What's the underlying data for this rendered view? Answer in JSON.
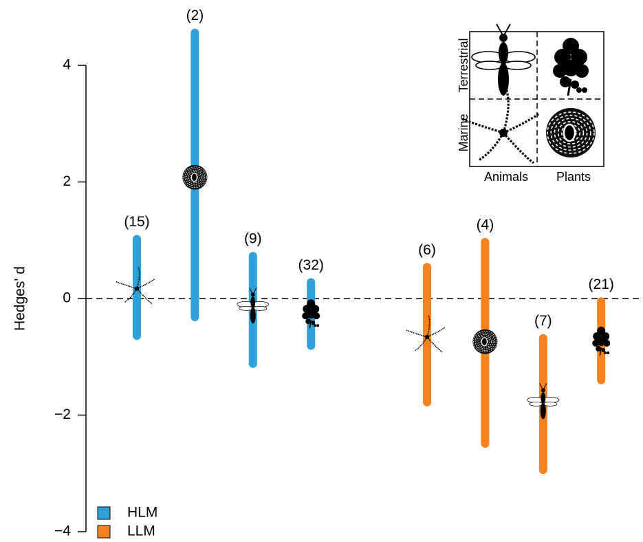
{
  "chart_data": {
    "type": "errorbar",
    "y_label": "Hedges' d",
    "ylim": [
      -4,
      5
    ],
    "yticks": [
      {
        "value": -4,
        "label": "−4"
      },
      {
        "value": -2,
        "label": "−2"
      },
      0,
      2,
      4
    ],
    "hline": 0,
    "series": [
      {
        "name": "HLM",
        "color": "#2ea1db",
        "values": [
          0.17,
          2.08,
          -0.17,
          -0.25
        ],
        "lower": [
          -0.71,
          -0.39,
          -1.19,
          -0.88
        ],
        "upper": [
          1.09,
          4.63,
          0.8,
          0.35
        ],
        "n_labels": [
          "(15)",
          "(2)",
          "(9)",
          "(32)"
        ],
        "markers": [
          "star",
          "sphere",
          "wasp",
          "leaf"
        ]
      },
      {
        "name": "LLM",
        "color": "#f5821f",
        "values": [
          -0.66,
          -0.74,
          -1.81,
          -0.72
        ],
        "lower": [
          -1.85,
          -2.56,
          -3.01,
          -1.47
        ],
        "upper": [
          0.61,
          1.04,
          -0.61,
          0.02
        ],
        "n_labels": [
          "(6)",
          "(4)",
          "(7)",
          "(21)"
        ],
        "markers": [
          "star",
          "sphere",
          "wasp",
          "leaf"
        ]
      }
    ],
    "legend_position": "bottom-left",
    "inset": {
      "rows": [
        "Terrestrial",
        "Marine"
      ],
      "columns": [
        "Animals",
        "Plants"
      ],
      "markers": [
        [
          "wasp",
          "leaf"
        ],
        [
          "star",
          "sphere"
        ]
      ]
    }
  }
}
